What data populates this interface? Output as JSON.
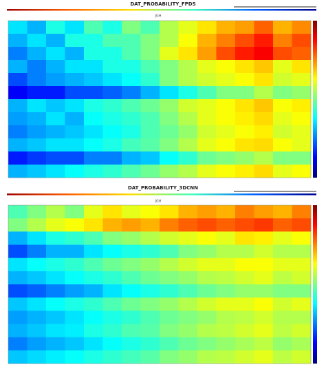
{
  "chart_data": [
    {
      "type": "heatmap",
      "title": "DAT_PROBABILITY_FPDS",
      "subtitle": "JGH",
      "colormap": "jet",
      "zlim": [
        0,
        1
      ],
      "values": [
        [
          0.35,
          0.3,
          0.4,
          0.35,
          0.45,
          0.4,
          0.5,
          0.45,
          0.55,
          0.6,
          0.65,
          0.7,
          0.72,
          0.78,
          0.7,
          0.74
        ],
        [
          0.3,
          0.35,
          0.3,
          0.4,
          0.4,
          0.45,
          0.45,
          0.5,
          0.55,
          0.62,
          0.7,
          0.75,
          0.8,
          0.85,
          0.75,
          0.8
        ],
        [
          0.25,
          0.3,
          0.35,
          0.3,
          0.4,
          0.4,
          0.45,
          0.5,
          0.6,
          0.65,
          0.72,
          0.8,
          0.85,
          0.88,
          0.8,
          0.78
        ],
        [
          0.3,
          0.25,
          0.3,
          0.35,
          0.35,
          0.4,
          0.4,
          0.45,
          0.5,
          0.55,
          0.6,
          0.62,
          0.65,
          0.68,
          0.6,
          0.65
        ],
        [
          0.2,
          0.25,
          0.28,
          0.3,
          0.32,
          0.35,
          0.38,
          0.42,
          0.5,
          0.55,
          0.58,
          0.6,
          0.62,
          0.65,
          0.58,
          0.6
        ],
        [
          0.12,
          0.15,
          0.15,
          0.2,
          0.2,
          0.22,
          0.25,
          0.3,
          0.35,
          0.4,
          0.45,
          0.5,
          0.5,
          0.55,
          0.5,
          0.52
        ],
        [
          0.3,
          0.35,
          0.32,
          0.35,
          0.4,
          0.42,
          0.45,
          0.48,
          0.52,
          0.58,
          0.6,
          0.62,
          0.65,
          0.68,
          0.62,
          0.64
        ],
        [
          0.28,
          0.3,
          0.35,
          0.3,
          0.38,
          0.4,
          0.42,
          0.45,
          0.5,
          0.55,
          0.6,
          0.62,
          0.64,
          0.66,
          0.6,
          0.62
        ],
        [
          0.25,
          0.28,
          0.3,
          0.32,
          0.35,
          0.38,
          0.4,
          0.45,
          0.48,
          0.52,
          0.58,
          0.6,
          0.62,
          0.64,
          0.58,
          0.6
        ],
        [
          0.3,
          0.32,
          0.35,
          0.35,
          0.38,
          0.4,
          0.44,
          0.46,
          0.5,
          0.55,
          0.6,
          0.62,
          0.65,
          0.66,
          0.62,
          0.6
        ],
        [
          0.15,
          0.18,
          0.2,
          0.2,
          0.25,
          0.25,
          0.3,
          0.32,
          0.38,
          0.42,
          0.48,
          0.5,
          0.52,
          0.55,
          0.5,
          0.5
        ],
        [
          0.3,
          0.32,
          0.35,
          0.38,
          0.4,
          0.42,
          0.45,
          0.48,
          0.52,
          0.55,
          0.6,
          0.62,
          0.64,
          0.66,
          0.6,
          0.62
        ]
      ]
    },
    {
      "type": "heatmap",
      "title": "DAT_PROBABILITY_3DCNN",
      "subtitle": "JGH",
      "colormap": "jet",
      "zlim": [
        0,
        1
      ],
      "values": [
        [
          0.45,
          0.5,
          0.55,
          0.5,
          0.6,
          0.65,
          0.6,
          0.62,
          0.65,
          0.7,
          0.72,
          0.7,
          0.75,
          0.72,
          0.7,
          0.75
        ],
        [
          0.5,
          0.55,
          0.6,
          0.62,
          0.65,
          0.7,
          0.72,
          0.7,
          0.75,
          0.78,
          0.8,
          0.78,
          0.8,
          0.82,
          0.78,
          0.8
        ],
        [
          0.3,
          0.35,
          0.4,
          0.42,
          0.45,
          0.5,
          0.52,
          0.55,
          0.58,
          0.6,
          0.62,
          0.6,
          0.65,
          0.64,
          0.6,
          0.62
        ],
        [
          0.2,
          0.25,
          0.3,
          0.3,
          0.35,
          0.38,
          0.4,
          0.42,
          0.45,
          0.5,
          0.52,
          0.55,
          0.55,
          0.58,
          0.55,
          0.55
        ],
        [
          0.35,
          0.38,
          0.4,
          0.42,
          0.45,
          0.48,
          0.5,
          0.52,
          0.55,
          0.58,
          0.6,
          0.6,
          0.62,
          0.62,
          0.6,
          0.6
        ],
        [
          0.3,
          0.32,
          0.35,
          0.38,
          0.4,
          0.42,
          0.45,
          0.48,
          0.5,
          0.52,
          0.55,
          0.56,
          0.58,
          0.6,
          0.56,
          0.58
        ],
        [
          0.2,
          0.22,
          0.25,
          0.28,
          0.3,
          0.35,
          0.38,
          0.4,
          0.42,
          0.45,
          0.48,
          0.5,
          0.52,
          0.52,
          0.5,
          0.5
        ],
        [
          0.32,
          0.35,
          0.38,
          0.4,
          0.42,
          0.45,
          0.48,
          0.5,
          0.52,
          0.55,
          0.58,
          0.6,
          0.6,
          0.62,
          0.58,
          0.6
        ],
        [
          0.28,
          0.3,
          0.32,
          0.35,
          0.38,
          0.4,
          0.42,
          0.45,
          0.48,
          0.5,
          0.52,
          0.55,
          0.56,
          0.58,
          0.55,
          0.55
        ],
        [
          0.3,
          0.32,
          0.35,
          0.36,
          0.4,
          0.42,
          0.45,
          0.46,
          0.5,
          0.52,
          0.55,
          0.56,
          0.58,
          0.6,
          0.56,
          0.58
        ],
        [
          0.25,
          0.28,
          0.3,
          0.32,
          0.35,
          0.38,
          0.4,
          0.42,
          0.45,
          0.48,
          0.5,
          0.52,
          0.54,
          0.56,
          0.52,
          0.54
        ],
        [
          0.32,
          0.34,
          0.36,
          0.38,
          0.4,
          0.42,
          0.44,
          0.46,
          0.5,
          0.52,
          0.55,
          0.56,
          0.58,
          0.6,
          0.56,
          0.58
        ]
      ]
    }
  ]
}
